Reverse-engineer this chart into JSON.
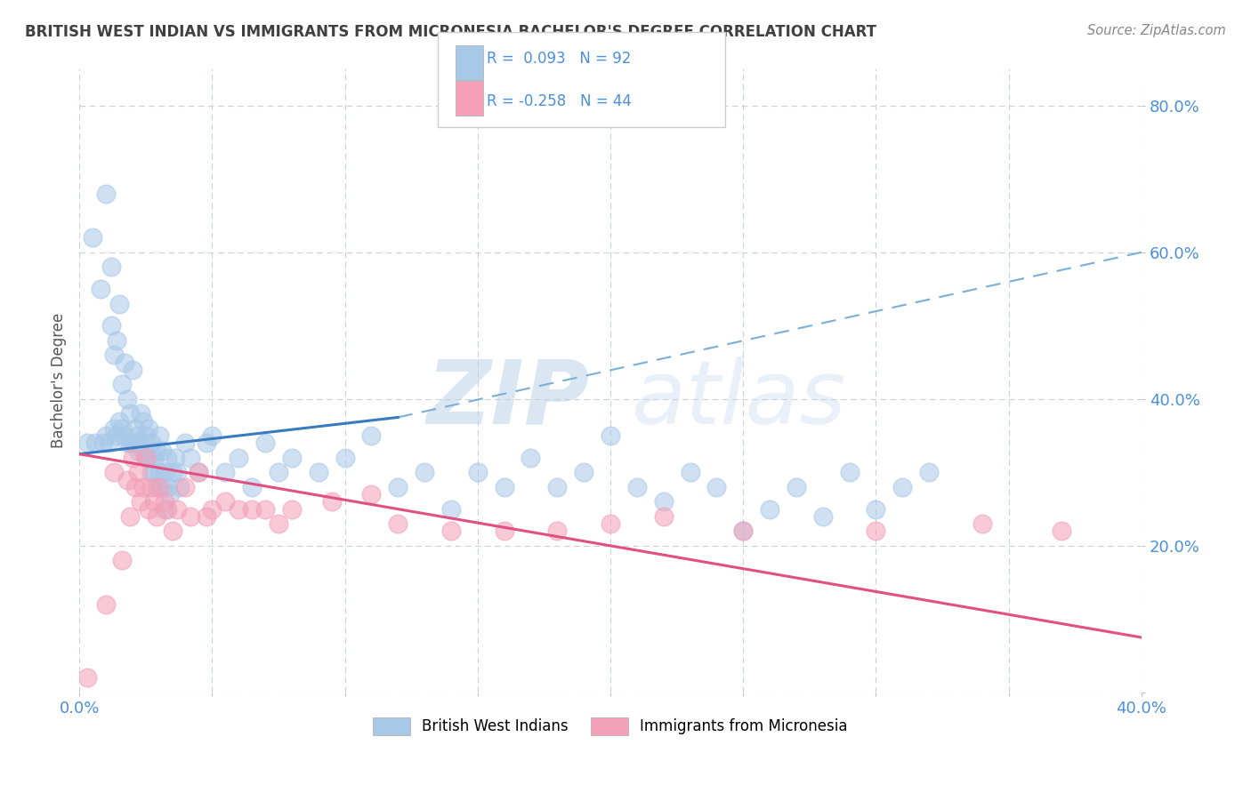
{
  "title": "BRITISH WEST INDIAN VS IMMIGRANTS FROM MICRONESIA BACHELOR'S DEGREE CORRELATION CHART",
  "source": "Source: ZipAtlas.com",
  "ylabel": "Bachelor's Degree",
  "xlim": [
    0.0,
    0.4
  ],
  "ylim": [
    0.0,
    0.85
  ],
  "xticks": [
    0.0,
    0.05,
    0.1,
    0.15,
    0.2,
    0.25,
    0.3,
    0.35,
    0.4
  ],
  "yticks": [
    0.0,
    0.2,
    0.4,
    0.6,
    0.8
  ],
  "blue_R": "0.093",
  "blue_N": "92",
  "pink_R": "-0.258",
  "pink_N": "44",
  "legend_label_blue": "British West Indians",
  "legend_label_pink": "Immigrants from Micronesia",
  "blue_color": "#a8c8e8",
  "pink_color": "#f4a0b8",
  "blue_trend_color": "#3a7abf",
  "pink_trend_color": "#e05080",
  "blue_dash_color": "#7aaed8",
  "watermark_zip": "ZIP",
  "watermark_atlas": "atlas",
  "background_color": "#ffffff",
  "grid_color": "#c8d0d8",
  "title_color": "#404040",
  "axis_tick_color": "#4a90d9",
  "blue_scatter_x": [
    0.003,
    0.005,
    0.006,
    0.008,
    0.009,
    0.01,
    0.01,
    0.011,
    0.012,
    0.012,
    0.013,
    0.013,
    0.014,
    0.014,
    0.015,
    0.015,
    0.016,
    0.016,
    0.017,
    0.017,
    0.018,
    0.018,
    0.019,
    0.019,
    0.02,
    0.02,
    0.021,
    0.021,
    0.022,
    0.022,
    0.023,
    0.023,
    0.024,
    0.024,
    0.025,
    0.025,
    0.026,
    0.026,
    0.027,
    0.027,
    0.028,
    0.028,
    0.029,
    0.029,
    0.03,
    0.03,
    0.031,
    0.031,
    0.032,
    0.032,
    0.033,
    0.033,
    0.034,
    0.035,
    0.036,
    0.037,
    0.038,
    0.04,
    0.042,
    0.045,
    0.048,
    0.05,
    0.055,
    0.06,
    0.065,
    0.07,
    0.075,
    0.08,
    0.09,
    0.1,
    0.11,
    0.12,
    0.13,
    0.14,
    0.15,
    0.16,
    0.17,
    0.18,
    0.19,
    0.2,
    0.21,
    0.22,
    0.23,
    0.24,
    0.25,
    0.26,
    0.27,
    0.28,
    0.29,
    0.3,
    0.31,
    0.32
  ],
  "blue_scatter_y": [
    0.34,
    0.62,
    0.34,
    0.55,
    0.34,
    0.68,
    0.35,
    0.34,
    0.5,
    0.58,
    0.46,
    0.36,
    0.48,
    0.35,
    0.53,
    0.37,
    0.42,
    0.36,
    0.45,
    0.35,
    0.4,
    0.34,
    0.38,
    0.34,
    0.44,
    0.34,
    0.36,
    0.34,
    0.35,
    0.33,
    0.38,
    0.34,
    0.37,
    0.33,
    0.35,
    0.32,
    0.36,
    0.32,
    0.3,
    0.34,
    0.32,
    0.3,
    0.28,
    0.33,
    0.35,
    0.3,
    0.28,
    0.33,
    0.3,
    0.25,
    0.28,
    0.32,
    0.27,
    0.3,
    0.32,
    0.3,
    0.28,
    0.34,
    0.32,
    0.3,
    0.34,
    0.35,
    0.3,
    0.32,
    0.28,
    0.34,
    0.3,
    0.32,
    0.3,
    0.32,
    0.35,
    0.28,
    0.3,
    0.25,
    0.3,
    0.28,
    0.32,
    0.28,
    0.3,
    0.35,
    0.28,
    0.26,
    0.3,
    0.28,
    0.22,
    0.25,
    0.28,
    0.24,
    0.3,
    0.25,
    0.28,
    0.3
  ],
  "pink_scatter_x": [
    0.003,
    0.01,
    0.013,
    0.016,
    0.018,
    0.019,
    0.02,
    0.021,
    0.022,
    0.023,
    0.024,
    0.025,
    0.026,
    0.027,
    0.028,
    0.029,
    0.03,
    0.032,
    0.033,
    0.035,
    0.037,
    0.04,
    0.042,
    0.045,
    0.048,
    0.05,
    0.055,
    0.06,
    0.065,
    0.07,
    0.075,
    0.08,
    0.095,
    0.11,
    0.12,
    0.14,
    0.16,
    0.18,
    0.2,
    0.22,
    0.25,
    0.3,
    0.34,
    0.37
  ],
  "pink_scatter_y": [
    0.02,
    0.12,
    0.3,
    0.18,
    0.29,
    0.24,
    0.32,
    0.28,
    0.3,
    0.26,
    0.28,
    0.32,
    0.25,
    0.28,
    0.26,
    0.24,
    0.28,
    0.26,
    0.25,
    0.22,
    0.25,
    0.28,
    0.24,
    0.3,
    0.24,
    0.25,
    0.26,
    0.25,
    0.25,
    0.25,
    0.23,
    0.25,
    0.26,
    0.27,
    0.23,
    0.22,
    0.22,
    0.22,
    0.23,
    0.24,
    0.22,
    0.22,
    0.23,
    0.22
  ],
  "blue_solid_trend_x": [
    0.0,
    0.12
  ],
  "blue_solid_trend_y": [
    0.325,
    0.375
  ],
  "blue_dash_trend_x": [
    0.12,
    0.4
  ],
  "blue_dash_trend_y": [
    0.375,
    0.6
  ],
  "pink_trend_x": [
    0.0,
    0.4
  ],
  "pink_trend_y": [
    0.325,
    0.075
  ]
}
